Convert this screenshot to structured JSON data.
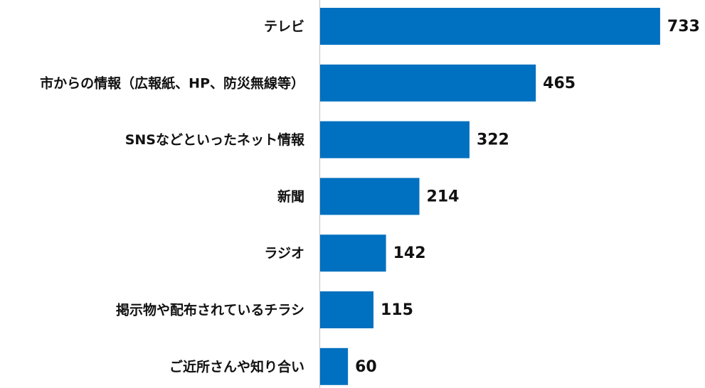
{
  "chart_data": {
    "type": "bar",
    "orientation": "horizontal",
    "categories": [
      "テレビ",
      "市からの情報（広報紙、HP、防災無線等）",
      "SNSなどといったネット情報",
      "新聞",
      "ラジオ",
      "掲示物や配布されているチラシ",
      "ご近所さんや知り合い"
    ],
    "values": [
      733,
      465,
      322,
      214,
      142,
      115,
      60
    ],
    "color": "#0070c0"
  }
}
